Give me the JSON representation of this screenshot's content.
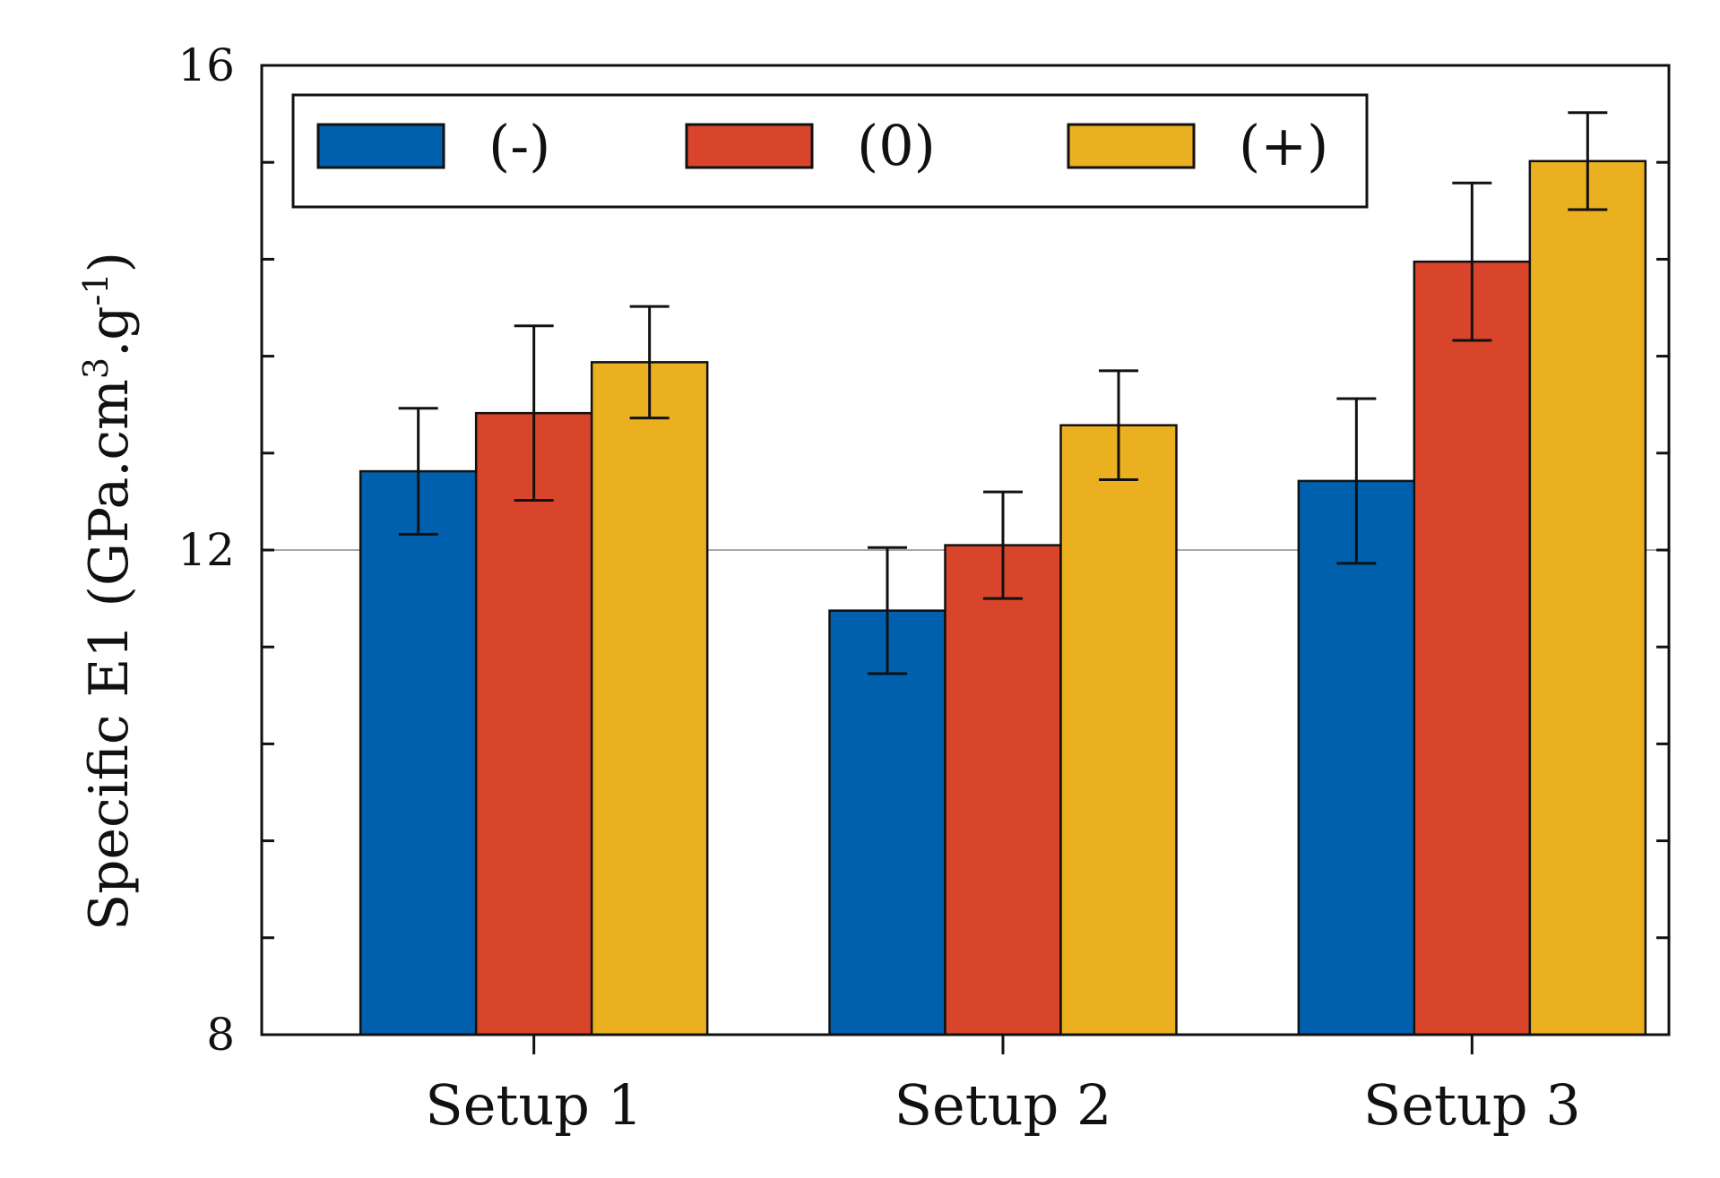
{
  "chart_data": {
    "type": "bar",
    "title": "",
    "xlabel": "",
    "ylabel": "Specific E1 (GPa.cm³.g⁻¹)",
    "ylabel_parts": {
      "main": "Specific E1 (GPa.cm",
      "sup1": "3",
      "mid": ".g",
      "sup2": "-1",
      "end": ")"
    },
    "ylim": [
      8,
      16
    ],
    "yticks_labeled": [
      8,
      12,
      16
    ],
    "yticks_minor_step": 0.8,
    "reference_line": 12,
    "categories": [
      "Setup 1",
      "Setup 2",
      "Setup 3"
    ],
    "series": [
      {
        "name": "(-)",
        "color": "#0060ad",
        "values": [
          12.65,
          11.5,
          12.57
        ],
        "errors": [
          0.52,
          0.52,
          0.68
        ]
      },
      {
        "name": "(0)",
        "color": "#d8452a",
        "values": [
          13.13,
          12.04,
          14.38
        ],
        "errors": [
          0.72,
          0.44,
          0.65
        ]
      },
      {
        "name": "(+)",
        "color": "#ebb020",
        "values": [
          13.55,
          13.03,
          15.21
        ],
        "errors": [
          0.46,
          0.45,
          0.4
        ]
      }
    ],
    "legend": {
      "position": "top",
      "layout": "horizontal"
    }
  }
}
